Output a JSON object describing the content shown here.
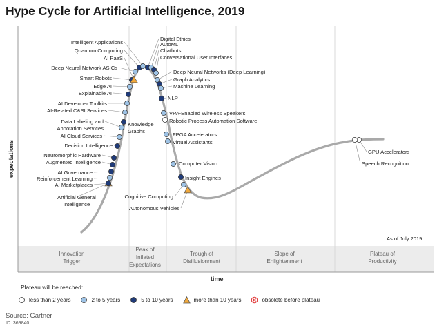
{
  "title": "Hype Cycle for Artificial Intelligence, 2019",
  "source": "Source: Gartner",
  "doc_id": "ID: 369840",
  "plateau_title": "Plateau will be reached:",
  "as_of": "As of July 2019",
  "colors": {
    "curve": "#a9a9a9",
    "lt2": "#ffffff",
    "y2to5": "#9ec3e6",
    "y5to10": "#1f3b7a",
    "gt10": "#f2a93b",
    "obsolete": "#e03030",
    "band": "#ececec"
  },
  "chart_data": {
    "type": "scatter",
    "xlabel": "time",
    "ylabel": "expectations",
    "phases": [
      "Innovation Trigger",
      "Peak of Inflated Expectations",
      "Trough of Disillusionment",
      "Slope of Enlightenment",
      "Plateau of Productivity"
    ],
    "legend": [
      {
        "key": "lt2",
        "label": "less than 2 years",
        "shape": "circle"
      },
      {
        "key": "y2to5",
        "label": "2 to 5 years",
        "shape": "circle"
      },
      {
        "key": "y5to10",
        "label": "5 to 10 years",
        "shape": "circle"
      },
      {
        "key": "gt10",
        "label": "more than 10 years",
        "shape": "triangle"
      },
      {
        "key": "obsolete",
        "label": "obsolete before plateau",
        "shape": "x"
      }
    ],
    "technologies": [
      {
        "name": "Artificial General Intelligence",
        "phase": "Innovation Trigger",
        "plateau": "gt10"
      },
      {
        "name": "AI Marketplaces",
        "phase": "Innovation Trigger",
        "plateau": "y5to10"
      },
      {
        "name": "Reinforcement Learning",
        "phase": "Innovation Trigger",
        "plateau": "y2to5"
      },
      {
        "name": "AI Governance",
        "phase": "Innovation Trigger",
        "plateau": "y5to10"
      },
      {
        "name": "Augmented Intelligence",
        "phase": "Innovation Trigger",
        "plateau": "y5to10"
      },
      {
        "name": "Neuromorphic Hardware",
        "phase": "Innovation Trigger",
        "plateau": "y5to10"
      },
      {
        "name": "Decision Intelligence",
        "phase": "Innovation Trigger",
        "plateau": "y5to10"
      },
      {
        "name": "AI Cloud Services",
        "phase": "Innovation Trigger",
        "plateau": "y2to5"
      },
      {
        "name": "Data Labeling and Annotation Services",
        "phase": "Innovation Trigger",
        "plateau": "y2to5"
      },
      {
        "name": "Knowledge Graphs",
        "phase": "Innovation Trigger",
        "plateau": "y5to10"
      },
      {
        "name": "AI-Related C&SI Services",
        "phase": "Innovation Trigger",
        "plateau": "y2to5"
      },
      {
        "name": "AI Developer Toolkits",
        "phase": "Innovation Trigger",
        "plateau": "y2to5"
      },
      {
        "name": "Explainable AI",
        "phase": "Innovation Trigger",
        "plateau": "y5to10"
      },
      {
        "name": "Edge AI",
        "phase": "Innovation Trigger",
        "plateau": "y2to5"
      },
      {
        "name": "Smart Robots",
        "phase": "Innovation Trigger",
        "plateau": "y5to10"
      },
      {
        "name": "Deep Neural Network ASICs",
        "phase": "Innovation Trigger",
        "plateau": "y2to5"
      },
      {
        "name": "AI PaaS",
        "phase": "Peak of Inflated Expectations",
        "plateau": "gt10"
      },
      {
        "name": "Quantum Computing",
        "phase": "Peak of Inflated Expectations",
        "plateau": "y5to10"
      },
      {
        "name": "Intelligent Applications",
        "phase": "Peak of Inflated Expectations",
        "plateau": "y2to5"
      },
      {
        "name": "Digital Ethics",
        "phase": "Peak of Inflated Expectations",
        "plateau": "y5to10"
      },
      {
        "name": "AutoML",
        "phase": "Peak of Inflated Expectations",
        "plateau": "y2to5"
      },
      {
        "name": "Chatbots",
        "phase": "Peak of Inflated Expectations",
        "plateau": "y5to10"
      },
      {
        "name": "Conversational User Interfaces",
        "phase": "Peak of Inflated Expectations",
        "plateau": "y2to5"
      },
      {
        "name": "Deep Neural Networks (Deep Learning)",
        "phase": "Peak of Inflated Expectations",
        "plateau": "y2to5"
      },
      {
        "name": "Graph Analytics",
        "phase": "Peak of Inflated Expectations",
        "plateau": "y5to10"
      },
      {
        "name": "Machine Learning",
        "phase": "Peak of Inflated Expectations",
        "plateau": "y2to5"
      },
      {
        "name": "NLP",
        "phase": "Peak of Inflated Expectations",
        "plateau": "y5to10"
      },
      {
        "name": "VPA-Enabled Wireless Speakers",
        "phase": "Trough of Disillusionment",
        "plateau": "y2to5"
      },
      {
        "name": "Robotic Process Automation Software",
        "phase": "Trough of Disillusionment",
        "plateau": "lt2"
      },
      {
        "name": "FPGA Accelerators",
        "phase": "Trough of Disillusionment",
        "plateau": "y2to5"
      },
      {
        "name": "Virtual Assistants",
        "phase": "Trough of Disillusionment",
        "plateau": "y2to5"
      },
      {
        "name": "Computer Vision",
        "phase": "Trough of Disillusionment",
        "plateau": "y2to5"
      },
      {
        "name": "Insight Engines",
        "phase": "Trough of Disillusionment",
        "plateau": "y5to10"
      },
      {
        "name": "Cognitive Computing",
        "phase": "Trough of Disillusionment",
        "plateau": "y2to5"
      },
      {
        "name": "Autonomous Vehicles",
        "phase": "Trough of Disillusionment",
        "plateau": "gt10"
      },
      {
        "name": "GPU Accelerators",
        "phase": "Plateau of Productivity",
        "plateau": "lt2"
      },
      {
        "name": "Speech Recognition",
        "phase": "Plateau of Productivity",
        "plateau": "lt2"
      }
    ]
  }
}
